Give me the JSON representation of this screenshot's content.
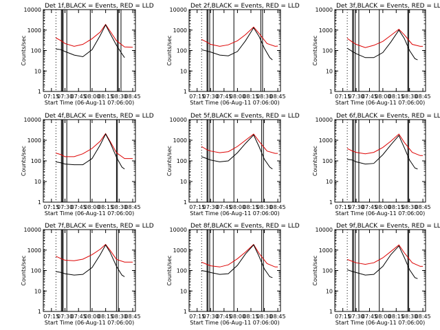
{
  "colors": {
    "events": "#000000",
    "lld": "#dd0000",
    "background": "#ffffff"
  },
  "chart_data": {
    "type": "line",
    "scale": "log",
    "ylim": [
      1,
      10000
    ],
    "ylabel": "Counts/sec",
    "xlabel": "Start Time (06-Aug-11 07:06:00)",
    "xlim": [
      "07:06",
      "08:48"
    ],
    "x_ticks": [
      "07:15",
      "07:30",
      "07:45",
      "08:00",
      "08:15",
      "08:30",
      "08:45"
    ],
    "y_ticks": [
      "1",
      "10",
      "100",
      "1000",
      "10000"
    ],
    "series_names": [
      "Events",
      "LLD"
    ],
    "panels": [
      {
        "title": "Det 1f,BLACK = Events, RED = LLD",
        "vlines_dotted": [
          "07:07",
          "07:20"
        ],
        "vlines_solid": [
          "07:26",
          "07:27",
          "07:28",
          "07:32",
          "07:58",
          "08:28",
          "08:29",
          "08:32"
        ],
        "events": [
          [
            7.33,
            120
          ],
          [
            7.43,
            110
          ],
          [
            7.5,
            90
          ],
          [
            7.67,
            60
          ],
          [
            7.83,
            50
          ],
          [
            8.0,
            110
          ],
          [
            8.15,
            550
          ],
          [
            8.25,
            1800
          ],
          [
            8.33,
            700
          ],
          [
            8.45,
            180
          ],
          [
            8.55,
            70
          ],
          [
            8.6,
            45
          ]
        ],
        "lld": [
          [
            7.33,
            420
          ],
          [
            7.43,
            300
          ],
          [
            7.5,
            220
          ],
          [
            7.67,
            160
          ],
          [
            7.83,
            200
          ],
          [
            8.0,
            380
          ],
          [
            8.15,
            800
          ],
          [
            8.25,
            1900
          ],
          [
            8.33,
            900
          ],
          [
            8.45,
            300
          ],
          [
            8.6,
            150
          ],
          [
            8.75,
            145
          ]
        ]
      },
      {
        "title": "Det 2f,BLACK = Events, RED = LLD",
        "vlines_dotted": [
          "07:07",
          "07:20"
        ],
        "vlines_solid": [
          "07:26",
          "07:27",
          "07:29",
          "07:33",
          "07:56",
          "08:26",
          "08:28"
        ],
        "events": [
          [
            7.33,
            110
          ],
          [
            7.43,
            95
          ],
          [
            7.5,
            85
          ],
          [
            7.67,
            60
          ],
          [
            7.83,
            55
          ],
          [
            8.0,
            90
          ],
          [
            8.15,
            300
          ],
          [
            8.3,
            1300
          ],
          [
            8.4,
            500
          ],
          [
            8.5,
            130
          ],
          [
            8.6,
            45
          ],
          [
            8.65,
            35
          ]
        ],
        "lld": [
          [
            7.33,
            350
          ],
          [
            7.43,
            260
          ],
          [
            7.5,
            200
          ],
          [
            7.67,
            160
          ],
          [
            7.83,
            190
          ],
          [
            8.0,
            300
          ],
          [
            8.15,
            600
          ],
          [
            8.3,
            1400
          ],
          [
            8.4,
            700
          ],
          [
            8.55,
            220
          ],
          [
            8.7,
            160
          ],
          [
            8.75,
            165
          ]
        ]
      },
      {
        "title": "Det 3f,BLACK = Events, RED = LLD",
        "vlines_dotted": [
          "07:07",
          "07:20"
        ],
        "vlines_solid": [
          "07:26",
          "07:27",
          "07:29",
          "07:33",
          "07:56",
          "08:28",
          "08:29"
        ],
        "events": [
          [
            7.33,
            130
          ],
          [
            7.43,
            90
          ],
          [
            7.5,
            70
          ],
          [
            7.67,
            45
          ],
          [
            7.83,
            45
          ],
          [
            8.0,
            80
          ],
          [
            8.15,
            260
          ],
          [
            8.3,
            1000
          ],
          [
            8.4,
            400
          ],
          [
            8.5,
            100
          ],
          [
            8.6,
            40
          ],
          [
            8.65,
            35
          ]
        ],
        "lld": [
          [
            7.33,
            400
          ],
          [
            7.43,
            260
          ],
          [
            7.5,
            200
          ],
          [
            7.67,
            140
          ],
          [
            7.83,
            180
          ],
          [
            8.0,
            280
          ],
          [
            8.15,
            550
          ],
          [
            8.3,
            1100
          ],
          [
            8.4,
            600
          ],
          [
            8.55,
            200
          ],
          [
            8.7,
            160
          ],
          [
            8.75,
            160
          ]
        ]
      },
      {
        "title": "Det 4f,BLACK = Events, RED = LLD",
        "vlines_dotted": [
          "07:07",
          "07:20"
        ],
        "vlines_solid": [
          "07:26",
          "07:27",
          "07:28",
          "07:32",
          "07:58",
          "08:27",
          "08:28"
        ],
        "events": [
          [
            7.33,
            90
          ],
          [
            7.43,
            80
          ],
          [
            7.5,
            70
          ],
          [
            7.67,
            65
          ],
          [
            7.83,
            65
          ],
          [
            8.0,
            130
          ],
          [
            8.15,
            600
          ],
          [
            8.25,
            2000
          ],
          [
            8.33,
            800
          ],
          [
            8.45,
            150
          ],
          [
            8.55,
            50
          ],
          [
            8.6,
            40
          ]
        ],
        "lld": [
          [
            7.33,
            240
          ],
          [
            7.43,
            200
          ],
          [
            7.5,
            160
          ],
          [
            7.67,
            160
          ],
          [
            7.83,
            220
          ],
          [
            8.0,
            400
          ],
          [
            8.15,
            900
          ],
          [
            8.25,
            2100
          ],
          [
            8.33,
            900
          ],
          [
            8.45,
            250
          ],
          [
            8.6,
            130
          ],
          [
            8.75,
            130
          ]
        ]
      },
      {
        "title": "Det 5f,BLACK = Events, RED = LLD",
        "vlines_dotted": [
          "07:07",
          "07:20"
        ],
        "vlines_solid": [
          "07:26",
          "07:27",
          "07:29",
          "07:33",
          "07:56",
          "08:27",
          "08:29"
        ],
        "events": [
          [
            7.33,
            160
          ],
          [
            7.43,
            130
          ],
          [
            7.5,
            110
          ],
          [
            7.67,
            90
          ],
          [
            7.83,
            100
          ],
          [
            8.0,
            250
          ],
          [
            8.15,
            700
          ],
          [
            8.3,
            1800
          ],
          [
            8.4,
            500
          ],
          [
            8.5,
            120
          ],
          [
            8.6,
            50
          ],
          [
            8.65,
            40
          ]
        ],
        "lld": [
          [
            7.33,
            500
          ],
          [
            7.43,
            350
          ],
          [
            7.5,
            300
          ],
          [
            7.67,
            250
          ],
          [
            7.83,
            280
          ],
          [
            8.0,
            500
          ],
          [
            8.15,
            1000
          ],
          [
            8.3,
            2000
          ],
          [
            8.4,
            900
          ],
          [
            8.55,
            300
          ],
          [
            8.7,
            230
          ],
          [
            8.75,
            230
          ]
        ]
      },
      {
        "title": "Det 6f,BLACK = Events, RED = LLD",
        "vlines_dotted": [
          "07:07",
          "07:20"
        ],
        "vlines_solid": [
          "07:26",
          "07:27",
          "07:29",
          "07:33",
          "07:56",
          "08:28",
          "08:29"
        ],
        "events": [
          [
            7.33,
            120
          ],
          [
            7.43,
            110
          ],
          [
            7.5,
            90
          ],
          [
            7.67,
            70
          ],
          [
            7.83,
            75
          ],
          [
            8.0,
            200
          ],
          [
            8.15,
            600
          ],
          [
            8.3,
            1700
          ],
          [
            8.4,
            450
          ],
          [
            8.5,
            110
          ],
          [
            8.6,
            45
          ],
          [
            8.65,
            40
          ]
        ],
        "lld": [
          [
            7.33,
            400
          ],
          [
            7.43,
            300
          ],
          [
            7.5,
            260
          ],
          [
            7.67,
            220
          ],
          [
            7.83,
            260
          ],
          [
            8.0,
            450
          ],
          [
            8.15,
            900
          ],
          [
            8.3,
            2000
          ],
          [
            8.4,
            800
          ],
          [
            8.55,
            260
          ],
          [
            8.7,
            180
          ],
          [
            8.75,
            180
          ]
        ]
      },
      {
        "title": "Det 7f,BLACK = Events, RED = LLD",
        "vlines_dotted": [
          "07:07",
          "07:20"
        ],
        "vlines_solid": [
          "07:26",
          "07:27",
          "07:28",
          "07:32",
          "07:58",
          "08:27",
          "08:29"
        ],
        "events": [
          [
            7.33,
            90
          ],
          [
            7.43,
            80
          ],
          [
            7.5,
            70
          ],
          [
            7.67,
            60
          ],
          [
            7.83,
            65
          ],
          [
            8.0,
            140
          ],
          [
            8.15,
            600
          ],
          [
            8.25,
            1800
          ],
          [
            8.33,
            800
          ],
          [
            8.45,
            160
          ],
          [
            8.55,
            60
          ],
          [
            8.6,
            50
          ]
        ],
        "lld": [
          [
            7.33,
            500
          ],
          [
            7.43,
            380
          ],
          [
            7.5,
            320
          ],
          [
            7.67,
            300
          ],
          [
            7.83,
            360
          ],
          [
            8.0,
            600
          ],
          [
            8.15,
            1100
          ],
          [
            8.25,
            1900
          ],
          [
            8.33,
            1000
          ],
          [
            8.45,
            350
          ],
          [
            8.6,
            260
          ],
          [
            8.75,
            260
          ]
        ]
      },
      {
        "title": "Det 8f,BLACK = Events, RED = LLD",
        "vlines_dotted": [
          "07:07",
          "07:20"
        ],
        "vlines_solid": [
          "07:26",
          "07:27",
          "07:29",
          "07:33",
          "07:56",
          "08:27",
          "08:29"
        ],
        "events": [
          [
            7.33,
            100
          ],
          [
            7.43,
            90
          ],
          [
            7.5,
            80
          ],
          [
            7.67,
            65
          ],
          [
            7.83,
            70
          ],
          [
            8.0,
            180
          ],
          [
            8.15,
            650
          ],
          [
            8.3,
            1800
          ],
          [
            8.4,
            500
          ],
          [
            8.5,
            120
          ],
          [
            8.6,
            50
          ],
          [
            8.65,
            45
          ]
        ],
        "lld": [
          [
            7.33,
            260
          ],
          [
            7.43,
            200
          ],
          [
            7.5,
            170
          ],
          [
            7.67,
            150
          ],
          [
            7.83,
            190
          ],
          [
            8.0,
            380
          ],
          [
            8.15,
            800
          ],
          [
            8.3,
            1900
          ],
          [
            8.4,
            700
          ],
          [
            8.55,
            220
          ],
          [
            8.7,
            150
          ],
          [
            8.75,
            150
          ]
        ]
      },
      {
        "title": "Det 9f,BLACK = Events, RED = LLD",
        "vlines_dotted": [
          "07:07",
          "07:20"
        ],
        "vlines_solid": [
          "07:26",
          "07:27",
          "07:29",
          "07:33",
          "07:56",
          "08:28",
          "08:29"
        ],
        "events": [
          [
            7.33,
            110
          ],
          [
            7.43,
            90
          ],
          [
            7.5,
            80
          ],
          [
            7.67,
            60
          ],
          [
            7.83,
            65
          ],
          [
            8.0,
            160
          ],
          [
            8.15,
            600
          ],
          [
            8.3,
            1600
          ],
          [
            8.4,
            450
          ],
          [
            8.5,
            110
          ],
          [
            8.6,
            45
          ],
          [
            8.65,
            40
          ]
        ],
        "lld": [
          [
            7.33,
            350
          ],
          [
            7.43,
            280
          ],
          [
            7.5,
            240
          ],
          [
            7.67,
            200
          ],
          [
            7.83,
            240
          ],
          [
            8.0,
            420
          ],
          [
            8.15,
            850
          ],
          [
            8.3,
            1800
          ],
          [
            8.4,
            750
          ],
          [
            8.55,
            240
          ],
          [
            8.7,
            160
          ],
          [
            8.75,
            160
          ]
        ]
      }
    ]
  }
}
